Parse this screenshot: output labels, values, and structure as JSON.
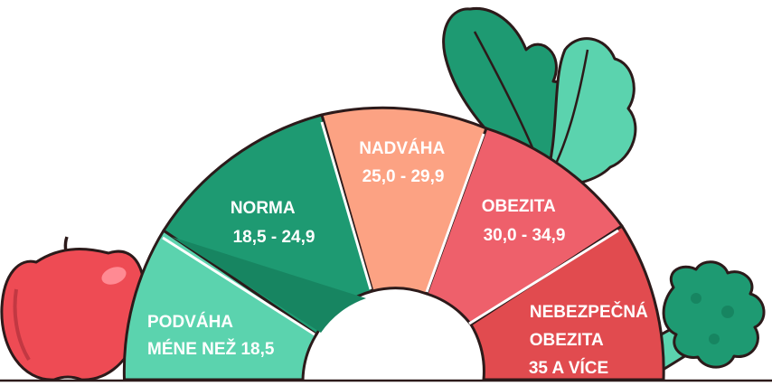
{
  "colors": {
    "underweight": "#5bd3ae",
    "normal": "#1e9a72",
    "normal_shade": "#178561",
    "overweight": "#fca283",
    "obesity": "#ee606b",
    "severe_obesity": "#e14b4f",
    "outline": "#2c1a1a",
    "apple": "#ee4b54",
    "leaf_dark": "#1e9a72",
    "leaf_light": "#5bd3ae",
    "broccoli": "#1e9a72"
  },
  "segments": [
    {
      "id": "underweight",
      "line1": "PODVÁHA",
      "line2": "MÉNE NEŽ 18,5"
    },
    {
      "id": "normal",
      "line1": "NORMA",
      "line2": "18,5 - 24,9"
    },
    {
      "id": "overweight",
      "line1": "NADVÁHA",
      "line2": "25,0 - 29,9"
    },
    {
      "id": "obesity",
      "line1": "OBEZITA",
      "line2": "30,0 - 34,9"
    },
    {
      "id": "severe_obesity",
      "line1": "NEBEZPEČNÁ",
      "line2": "OBEZITA",
      "line3": "35 A VÍCE"
    }
  ],
  "icons": [
    "apple-icon",
    "kale-leaf-icon",
    "broccoli-icon"
  ]
}
